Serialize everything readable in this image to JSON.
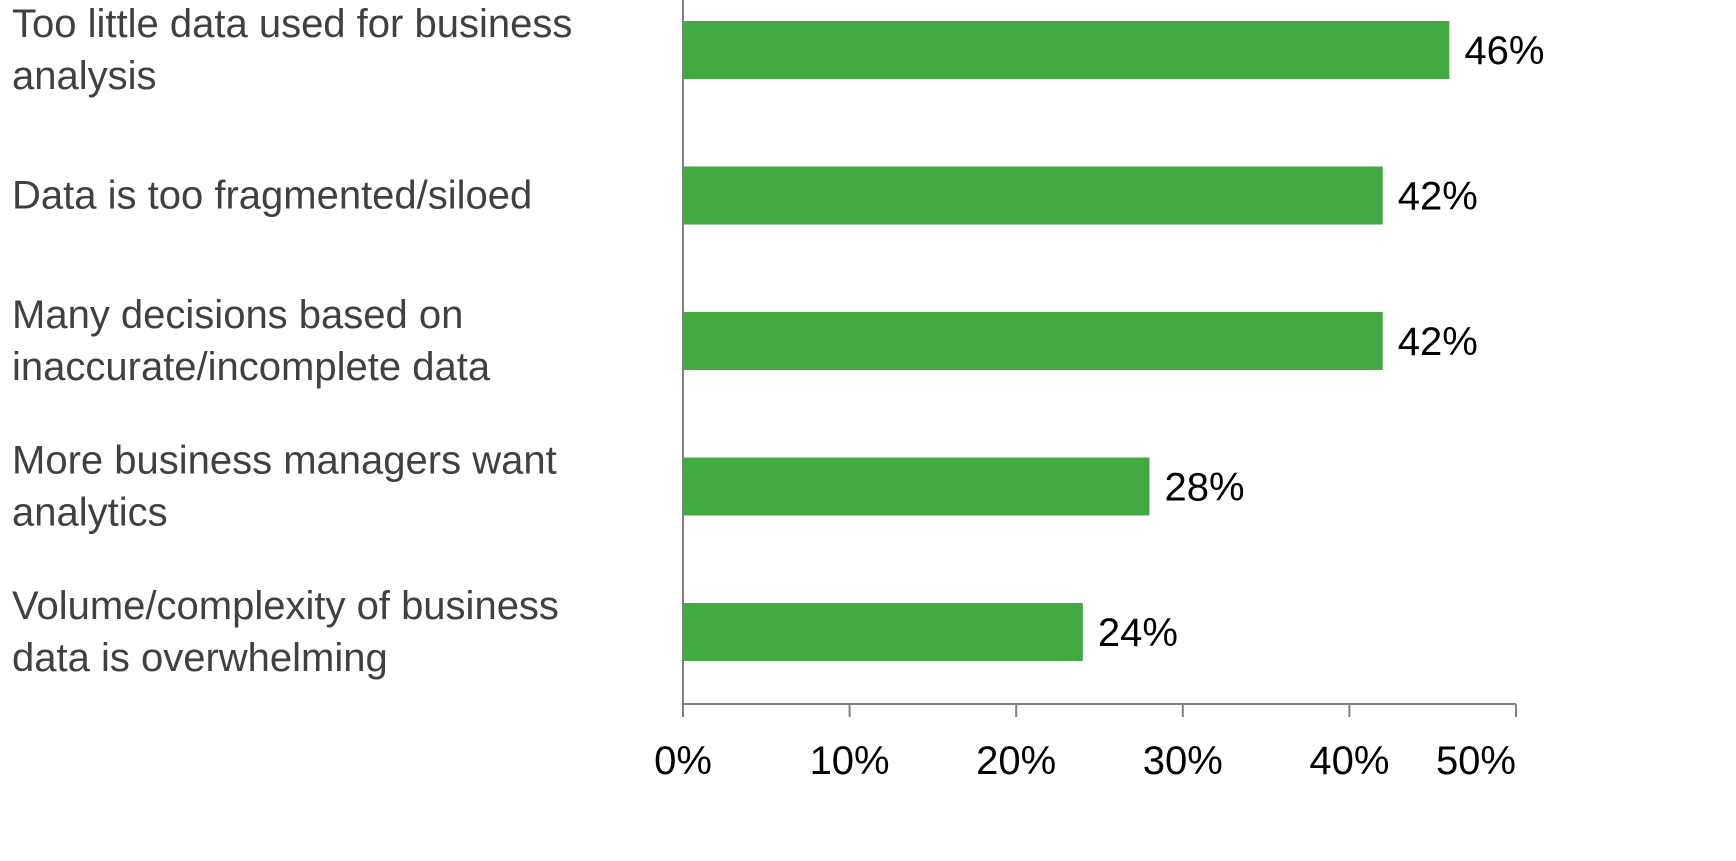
{
  "chart_data": {
    "type": "bar",
    "orientation": "horizontal",
    "title": "",
    "xlabel": "",
    "ylabel": "",
    "xlim": [
      0,
      50
    ],
    "ticks": [
      0,
      10,
      20,
      30,
      40,
      50
    ],
    "tick_labels": [
      "0%",
      "10%",
      "20%",
      "30%",
      "40%",
      "50%"
    ],
    "grid": false,
    "bar_color": "#43AA43",
    "categories": [
      [
        "Too little data used for business",
        "analysis"
      ],
      [
        "Data is too fragmented/siloed"
      ],
      [
        "Many decisions based on",
        "inaccurate/incomplete data"
      ],
      [
        "More business managers want",
        "analytics"
      ],
      [
        "Volume/complexity of business",
        "data is overwhelming"
      ]
    ],
    "values": [
      46,
      42,
      42,
      28,
      24
    ],
    "value_labels": [
      "46%",
      "42%",
      "42%",
      "28%",
      "24%"
    ]
  }
}
